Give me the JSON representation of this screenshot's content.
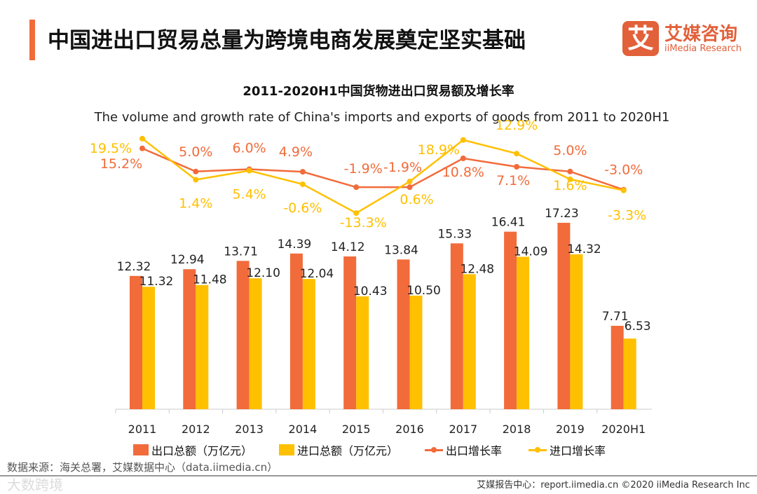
{
  "header": {
    "title": "中国进出口贸易总量为跨境电商发展奠定坚实基础",
    "logo_mark": "艾",
    "logo_cn": "艾媒咨询",
    "logo_en": "iiMedia Research"
  },
  "chart_data": {
    "type": "bar+line",
    "title": "2011-2020H1中国货物进出口贸易额及增长率",
    "subtitle": "The volume and growth rate of China's imports and exports of goods from 2011 to 2020H1",
    "categories": [
      "2011",
      "2012",
      "2013",
      "2014",
      "2015",
      "2016",
      "2017",
      "2018",
      "2019",
      "2020H1"
    ],
    "series": [
      {
        "name": "出口总额（万亿元）",
        "type": "bar",
        "color": "#f26b3a",
        "values": [
          12.32,
          12.94,
          13.71,
          14.39,
          14.12,
          13.84,
          15.33,
          16.41,
          17.23,
          7.71
        ]
      },
      {
        "name": "进口总额（万亿元）",
        "type": "bar",
        "color": "#ffc000",
        "values": [
          11.32,
          11.48,
          12.1,
          12.04,
          10.43,
          10.5,
          12.48,
          14.09,
          14.32,
          6.53
        ]
      },
      {
        "name": "出口增长率",
        "type": "line",
        "color": "#f26b3a",
        "values": [
          15.2,
          5.0,
          6.0,
          4.9,
          -1.9,
          -1.9,
          10.8,
          7.1,
          5.0,
          -3.0
        ]
      },
      {
        "name": "进口增长率",
        "type": "line",
        "color": "#ffc000",
        "values": [
          19.5,
          1.4,
          5.4,
          -0.6,
          -13.3,
          0.6,
          18.9,
          12.9,
          1.6,
          -3.3
        ]
      }
    ],
    "legend": "bottom"
  },
  "footer": {
    "source": "数据来源：海关总署，艾媒数据中心（data.iimedia.cn）",
    "watermark": "大数跨境",
    "right": "艾媒报告中心：report.iimedia.cn   ©2020  iiMedia Research  Inc"
  }
}
